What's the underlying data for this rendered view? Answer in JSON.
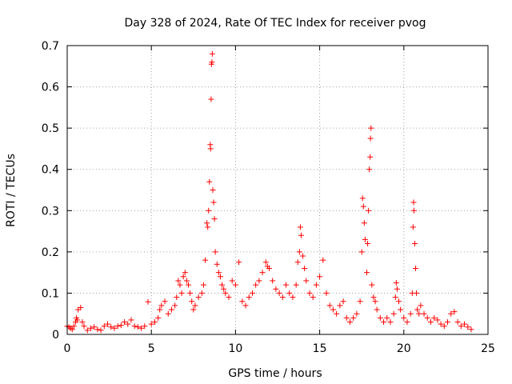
{
  "chart_data": {
    "type": "scatter",
    "title": "Day 328 of 2024, Rate Of TEC Index for receiver pvog",
    "xlabel": "GPS time / hours",
    "ylabel": "ROTI / TECUs",
    "xlim": [
      0,
      25
    ],
    "ylim": [
      0,
      0.7
    ],
    "xticks": [
      "0",
      "5",
      "10",
      "15",
      "20",
      "25"
    ],
    "yticks": [
      "0",
      "0.1",
      "0.2",
      "0.3",
      "0.4",
      "0.5",
      "0.6",
      "0.7"
    ],
    "grid": true,
    "marker": "+",
    "color": "#ff0000",
    "series": [
      {
        "name": "ROTI",
        "points": [
          [
            0.0,
            0.02
          ],
          [
            0.1,
            0.018
          ],
          [
            0.2,
            0.015
          ],
          [
            0.3,
            0.012
          ],
          [
            0.4,
            0.02
          ],
          [
            0.5,
            0.03
          ],
          [
            0.55,
            0.04
          ],
          [
            0.6,
            0.035
          ],
          [
            0.65,
            0.06
          ],
          [
            0.8,
            0.065
          ],
          [
            0.9,
            0.03
          ],
          [
            1.0,
            0.02
          ],
          [
            1.2,
            0.01
          ],
          [
            1.4,
            0.015
          ],
          [
            1.6,
            0.018
          ],
          [
            1.8,
            0.012
          ],
          [
            2.0,
            0.01
          ],
          [
            2.2,
            0.02
          ],
          [
            2.4,
            0.025
          ],
          [
            2.6,
            0.018
          ],
          [
            2.8,
            0.015
          ],
          [
            3.0,
            0.02
          ],
          [
            3.2,
            0.022
          ],
          [
            3.4,
            0.03
          ],
          [
            3.6,
            0.025
          ],
          [
            3.8,
            0.035
          ],
          [
            4.0,
            0.02
          ],
          [
            4.2,
            0.018
          ],
          [
            4.4,
            0.015
          ],
          [
            4.6,
            0.02
          ],
          [
            4.8,
            0.079
          ],
          [
            5.0,
            0.025
          ],
          [
            5.2,
            0.03
          ],
          [
            5.4,
            0.04
          ],
          [
            5.5,
            0.06
          ],
          [
            5.6,
            0.07
          ],
          [
            5.8,
            0.08
          ],
          [
            6.0,
            0.05
          ],
          [
            6.2,
            0.06
          ],
          [
            6.4,
            0.07
          ],
          [
            6.5,
            0.09
          ],
          [
            6.6,
            0.13
          ],
          [
            6.7,
            0.12
          ],
          [
            6.8,
            0.1
          ],
          [
            6.9,
            0.14
          ],
          [
            7.0,
            0.15
          ],
          [
            7.1,
            0.13
          ],
          [
            7.2,
            0.12
          ],
          [
            7.3,
            0.1
          ],
          [
            7.4,
            0.08
          ],
          [
            7.5,
            0.06
          ],
          [
            7.6,
            0.07
          ],
          [
            7.8,
            0.09
          ],
          [
            8.0,
            0.1
          ],
          [
            8.1,
            0.12
          ],
          [
            8.2,
            0.18
          ],
          [
            8.3,
            0.27
          ],
          [
            8.35,
            0.26
          ],
          [
            8.4,
            0.3
          ],
          [
            8.45,
            0.37
          ],
          [
            8.5,
            0.46
          ],
          [
            8.52,
            0.45
          ],
          [
            8.55,
            0.57
          ],
          [
            8.57,
            0.655
          ],
          [
            8.6,
            0.66
          ],
          [
            8.62,
            0.68
          ],
          [
            8.65,
            0.35
          ],
          [
            8.7,
            0.32
          ],
          [
            8.75,
            0.28
          ],
          [
            8.8,
            0.2
          ],
          [
            8.9,
            0.17
          ],
          [
            9.0,
            0.15
          ],
          [
            9.1,
            0.14
          ],
          [
            9.2,
            0.12
          ],
          [
            9.3,
            0.11
          ],
          [
            9.4,
            0.1
          ],
          [
            9.6,
            0.09
          ],
          [
            9.8,
            0.13
          ],
          [
            10.0,
            0.12
          ],
          [
            10.2,
            0.175
          ],
          [
            10.4,
            0.08
          ],
          [
            10.6,
            0.07
          ],
          [
            10.8,
            0.09
          ],
          [
            11.0,
            0.1
          ],
          [
            11.2,
            0.12
          ],
          [
            11.4,
            0.13
          ],
          [
            11.6,
            0.15
          ],
          [
            11.8,
            0.175
          ],
          [
            11.9,
            0.165
          ],
          [
            12.0,
            0.16
          ],
          [
            12.2,
            0.13
          ],
          [
            12.4,
            0.11
          ],
          [
            12.6,
            0.1
          ],
          [
            12.8,
            0.09
          ],
          [
            13.0,
            0.12
          ],
          [
            13.2,
            0.1
          ],
          [
            13.4,
            0.09
          ],
          [
            13.6,
            0.12
          ],
          [
            13.7,
            0.175
          ],
          [
            13.8,
            0.2
          ],
          [
            13.85,
            0.26
          ],
          [
            13.9,
            0.24
          ],
          [
            14.0,
            0.19
          ],
          [
            14.1,
            0.16
          ],
          [
            14.2,
            0.13
          ],
          [
            14.4,
            0.1
          ],
          [
            14.6,
            0.09
          ],
          [
            14.8,
            0.12
          ],
          [
            15.0,
            0.14
          ],
          [
            15.2,
            0.18
          ],
          [
            15.4,
            0.1
          ],
          [
            15.6,
            0.07
          ],
          [
            15.8,
            0.06
          ],
          [
            16.0,
            0.05
          ],
          [
            16.2,
            0.07
          ],
          [
            16.4,
            0.08
          ],
          [
            16.6,
            0.04
          ],
          [
            16.8,
            0.03
          ],
          [
            17.0,
            0.04
          ],
          [
            17.2,
            0.05
          ],
          [
            17.4,
            0.08
          ],
          [
            17.5,
            0.2
          ],
          [
            17.55,
            0.33
          ],
          [
            17.6,
            0.31
          ],
          [
            17.65,
            0.27
          ],
          [
            17.7,
            0.23
          ],
          [
            17.8,
            0.15
          ],
          [
            17.85,
            0.22
          ],
          [
            17.9,
            0.3
          ],
          [
            17.95,
            0.4
          ],
          [
            18.0,
            0.43
          ],
          [
            18.02,
            0.475
          ],
          [
            18.05,
            0.5
          ],
          [
            18.1,
            0.12
          ],
          [
            18.2,
            0.09
          ],
          [
            18.3,
            0.08
          ],
          [
            18.4,
            0.06
          ],
          [
            18.6,
            0.04
          ],
          [
            18.8,
            0.03
          ],
          [
            19.0,
            0.04
          ],
          [
            19.2,
            0.03
          ],
          [
            19.4,
            0.05
          ],
          [
            19.5,
            0.09
          ],
          [
            19.55,
            0.125
          ],
          [
            19.6,
            0.11
          ],
          [
            19.7,
            0.08
          ],
          [
            19.8,
            0.06
          ],
          [
            20.0,
            0.04
          ],
          [
            20.2,
            0.03
          ],
          [
            20.4,
            0.05
          ],
          [
            20.5,
            0.1
          ],
          [
            20.55,
            0.26
          ],
          [
            20.58,
            0.32
          ],
          [
            20.6,
            0.3
          ],
          [
            20.65,
            0.22
          ],
          [
            20.7,
            0.16
          ],
          [
            20.75,
            0.1
          ],
          [
            20.8,
            0.06
          ],
          [
            20.9,
            0.05
          ],
          [
            21.0,
            0.07
          ],
          [
            21.2,
            0.05
          ],
          [
            21.4,
            0.04
          ],
          [
            21.6,
            0.03
          ],
          [
            21.8,
            0.04
          ],
          [
            22.0,
            0.035
          ],
          [
            22.2,
            0.025
          ],
          [
            22.4,
            0.02
          ],
          [
            22.6,
            0.03
          ],
          [
            22.8,
            0.05
          ],
          [
            23.0,
            0.055
          ],
          [
            23.2,
            0.03
          ],
          [
            23.4,
            0.02
          ],
          [
            23.6,
            0.025
          ],
          [
            23.8,
            0.018
          ],
          [
            24.0,
            0.012
          ]
        ]
      }
    ]
  }
}
